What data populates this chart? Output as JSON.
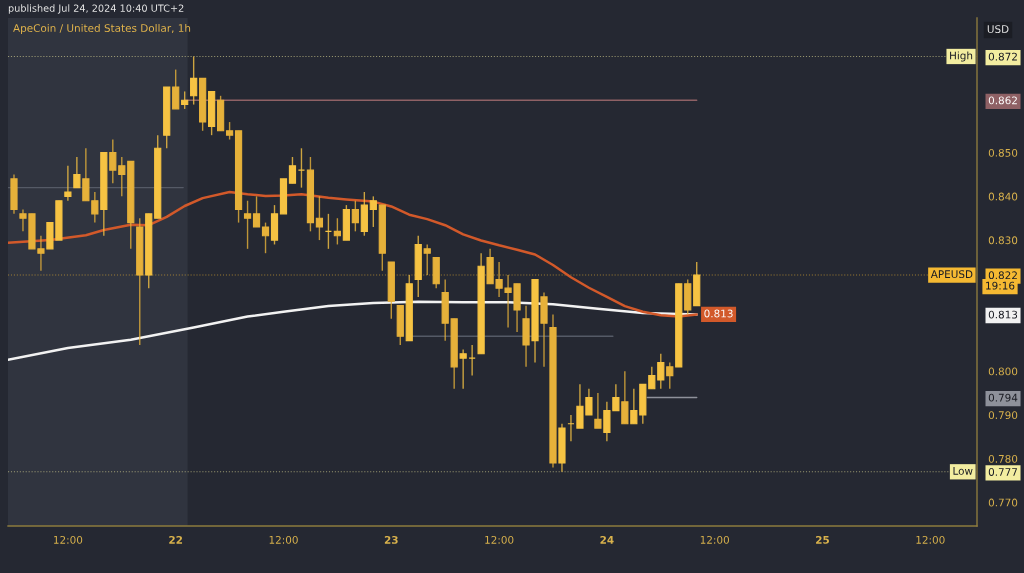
{
  "chart_data": {
    "type": "candlestick",
    "title": "ApeCoin / United States Dollar, 1h",
    "subtitle": "published Jul 24, 2024 10:40 UTC+2",
    "ylabel": "USD",
    "annotations": [
      "19:16"
    ],
    "x": [
      "2024-07-21T06:00",
      "2024-07-21T07:00",
      "2024-07-21T08:00",
      "2024-07-21T09:00",
      "2024-07-21T10:00",
      "2024-07-21T11:00",
      "2024-07-21T12:00",
      "2024-07-21T13:00",
      "2024-07-21T14:00",
      "2024-07-21T15:00",
      "2024-07-21T16:00",
      "2024-07-21T17:00",
      "2024-07-21T18:00",
      "2024-07-21T19:00",
      "2024-07-21T20:00",
      "2024-07-21T21:00",
      "2024-07-21T22:00",
      "2024-07-21T23:00",
      "2024-07-22T00:00",
      "2024-07-22T01:00",
      "2024-07-22T02:00",
      "2024-07-22T03:00",
      "2024-07-22T04:00",
      "2024-07-22T05:00",
      "2024-07-22T06:00",
      "2024-07-22T07:00",
      "2024-07-22T08:00",
      "2024-07-22T09:00",
      "2024-07-22T10:00",
      "2024-07-22T11:00",
      "2024-07-22T12:00",
      "2024-07-22T13:00",
      "2024-07-22T14:00",
      "2024-07-22T15:00",
      "2024-07-22T16:00",
      "2024-07-22T17:00",
      "2024-07-22T18:00",
      "2024-07-22T19:00",
      "2024-07-22T20:00",
      "2024-07-22T21:00",
      "2024-07-22T22:00",
      "2024-07-22T23:00",
      "2024-07-23T00:00",
      "2024-07-23T01:00",
      "2024-07-23T02:00",
      "2024-07-23T03:00",
      "2024-07-23T04:00",
      "2024-07-23T05:00",
      "2024-07-23T06:00",
      "2024-07-23T07:00",
      "2024-07-23T08:00",
      "2024-07-23T09:00",
      "2024-07-23T10:00",
      "2024-07-23T11:00",
      "2024-07-23T12:00",
      "2024-07-23T13:00",
      "2024-07-23T14:00",
      "2024-07-23T15:00",
      "2024-07-23T16:00",
      "2024-07-23T17:00",
      "2024-07-23T18:00",
      "2024-07-23T19:00",
      "2024-07-23T20:00",
      "2024-07-23T21:00",
      "2024-07-23T22:00",
      "2024-07-23T23:00",
      "2024-07-24T00:00",
      "2024-07-24T01:00",
      "2024-07-24T02:00",
      "2024-07-24T03:00",
      "2024-07-24T04:00",
      "2024-07-24T05:00",
      "2024-07-24T06:00",
      "2024-07-24T07:00",
      "2024-07-24T08:00",
      "2024-07-24T09:00",
      "2024-07-24T10:00"
    ],
    "ohlc": [
      [
        0.844,
        0.845,
        0.836,
        0.837
      ],
      [
        0.836,
        0.837,
        0.832,
        0.835
      ],
      [
        0.836,
        0.836,
        0.828,
        0.828
      ],
      [
        0.828,
        0.831,
        0.823,
        0.827
      ],
      [
        0.828,
        0.834,
        0.828,
        0.834
      ],
      [
        0.83,
        0.839,
        0.83,
        0.839
      ],
      [
        0.84,
        0.847,
        0.839,
        0.841
      ],
      [
        0.842,
        0.849,
        0.842,
        0.845
      ],
      [
        0.844,
        0.851,
        0.839,
        0.839
      ],
      [
        0.839,
        0.841,
        0.834,
        0.836
      ],
      [
        0.837,
        0.85,
        0.831,
        0.85
      ],
      [
        0.85,
        0.853,
        0.843,
        0.846
      ],
      [
        0.847,
        0.849,
        0.84,
        0.845
      ],
      [
        0.848,
        0.848,
        0.828,
        0.834
      ],
      [
        0.833,
        0.835,
        0.806,
        0.822
      ],
      [
        0.822,
        0.836,
        0.819,
        0.836
      ],
      [
        0.835,
        0.854,
        0.835,
        0.851
      ],
      [
        0.854,
        0.865,
        0.851,
        0.865
      ],
      [
        0.865,
        0.869,
        0.86,
        0.86
      ],
      [
        0.861,
        0.864,
        0.86,
        0.862
      ],
      [
        0.863,
        0.872,
        0.861,
        0.867
      ],
      [
        0.867,
        0.867,
        0.855,
        0.857
      ],
      [
        0.856,
        0.864,
        0.854,
        0.864
      ],
      [
        0.862,
        0.863,
        0.855,
        0.855
      ],
      [
        0.855,
        0.857,
        0.853,
        0.854
      ],
      [
        0.855,
        0.855,
        0.834,
        0.837
      ],
      [
        0.836,
        0.839,
        0.828,
        0.835
      ],
      [
        0.836,
        0.84,
        0.833,
        0.833
      ],
      [
        0.833,
        0.834,
        0.827,
        0.831
      ],
      [
        0.83,
        0.838,
        0.829,
        0.836
      ],
      [
        0.836,
        0.844,
        0.836,
        0.844
      ],
      [
        0.843,
        0.849,
        0.843,
        0.847
      ],
      [
        0.846,
        0.851,
        0.842,
        0.846
      ],
      [
        0.846,
        0.849,
        0.832,
        0.834
      ],
      [
        0.835,
        0.84,
        0.83,
        0.833
      ],
      [
        0.832,
        0.836,
        0.828,
        0.832
      ],
      [
        0.832,
        0.835,
        0.829,
        0.831
      ],
      [
        0.83,
        0.838,
        0.83,
        0.837
      ],
      [
        0.837,
        0.839,
        0.832,
        0.834
      ],
      [
        0.832,
        0.841,
        0.831,
        0.838
      ],
      [
        0.837,
        0.84,
        0.833,
        0.839
      ],
      [
        0.838,
        0.838,
        0.823,
        0.827
      ],
      [
        0.825,
        0.825,
        0.812,
        0.816
      ],
      [
        0.815,
        0.815,
        0.806,
        0.808
      ],
      [
        0.807,
        0.822,
        0.807,
        0.82
      ],
      [
        0.821,
        0.831,
        0.817,
        0.829
      ],
      [
        0.828,
        0.829,
        0.822,
        0.827
      ],
      [
        0.826,
        0.826,
        0.819,
        0.82
      ],
      [
        0.818,
        0.821,
        0.807,
        0.811
      ],
      [
        0.812,
        0.812,
        0.796,
        0.801
      ],
      [
        0.803,
        0.805,
        0.796,
        0.804
      ],
      [
        0.803,
        0.806,
        0.799,
        0.803
      ],
      [
        0.804,
        0.827,
        0.804,
        0.824
      ],
      [
        0.826,
        0.828,
        0.82,
        0.82
      ],
      [
        0.821,
        0.825,
        0.817,
        0.819
      ],
      [
        0.819,
        0.822,
        0.81,
        0.818
      ],
      [
        0.82,
        0.82,
        0.809,
        0.814
      ],
      [
        0.812,
        0.815,
        0.801,
        0.806
      ],
      [
        0.807,
        0.821,
        0.802,
        0.821
      ],
      [
        0.817,
        0.818,
        0.801,
        0.811
      ],
      [
        0.81,
        0.813,
        0.778,
        0.779
      ],
      [
        0.779,
        0.788,
        0.777,
        0.787
      ],
      [
        0.788,
        0.79,
        0.784,
        0.788
      ],
      [
        0.787,
        0.797,
        0.787,
        0.792
      ],
      [
        0.79,
        0.796,
        0.79,
        0.794
      ],
      [
        0.789,
        0.795,
        0.787,
        0.787
      ],
      [
        0.786,
        0.793,
        0.784,
        0.791
      ],
      [
        0.791,
        0.797,
        0.791,
        0.794
      ],
      [
        0.793,
        0.8,
        0.788,
        0.788
      ],
      [
        0.788,
        0.796,
        0.788,
        0.791
      ],
      [
        0.79,
        0.797,
        0.788,
        0.797
      ],
      [
        0.796,
        0.801,
        0.796,
        0.799
      ],
      [
        0.798,
        0.804,
        0.796,
        0.802
      ],
      [
        0.801,
        0.802,
        0.796,
        0.799
      ],
      [
        0.801,
        0.82,
        0.801,
        0.82
      ],
      [
        0.82,
        0.821,
        0.813,
        0.814
      ],
      [
        0.815,
        0.825,
        0.815,
        0.822
      ]
    ],
    "colors": [
      "#e6b13a",
      "#e6b13a",
      "#e6b13a",
      "#e6b13a",
      "#f6c343",
      "#f6c343",
      "#f6c343",
      "#f6c343",
      "#e6b13a",
      "#e6b13a",
      "#f6c343",
      "#e6b13a",
      "#e6b13a",
      "#e6b13a",
      "#e6b13a",
      "#f6c343",
      "#f6c343",
      "#f6c343",
      "#e6b13a",
      "#f6c343",
      "#f6c343",
      "#e6b13a",
      "#f6c343",
      "#e6b13a",
      "#e6b13a",
      "#e6b13a",
      "#e6b13a",
      "#e6b13a",
      "#e6b13a",
      "#f6c343",
      "#f6c343",
      "#f6c343",
      "#f6c343",
      "#e6b13a",
      "#e6b13a",
      "#f6c343",
      "#e6b13a",
      "#f6c343",
      "#e6b13a",
      "#f6c343",
      "#f6c343",
      "#e6b13a",
      "#e6b13a",
      "#e6b13a",
      "#f6c343",
      "#f6c343",
      "#e6b13a",
      "#e6b13a",
      "#e6b13a",
      "#e6b13a",
      "#f6c343",
      "#f6c343",
      "#f6c343",
      "#e6b13a",
      "#e6b13a",
      "#e6b13a",
      "#e6b13a",
      "#e6b13a",
      "#f6c343",
      "#e6b13a",
      "#e6b13a",
      "#f6c343",
      "#f6c343",
      "#f6c343",
      "#f6c343",
      "#e6b13a",
      "#f6c343",
      "#f6c343",
      "#e6b13a",
      "#f6c343",
      "#f6c343",
      "#f6c343",
      "#f6c343",
      "#e6b13a",
      "#f6c343",
      "#e6b13a",
      "#f6c343"
    ],
    "series": [
      {
        "type": "line",
        "color": "#f2f2f2",
        "x": [
          "2024-07-21T05:20",
          "2024-07-21T12:00",
          "2024-07-21T19:00",
          "2024-07-22T02:00",
          "2024-07-22T08:00",
          "2024-07-22T12:00",
          "2024-07-22T17:00",
          "2024-07-22T22:00",
          "2024-07-23T03:00",
          "2024-07-23T08:00",
          "2024-07-23T13:00",
          "2024-07-23T18:00",
          "2024-07-23T23:00",
          "2024-07-24T04:00",
          "2024-07-24T10:00"
        ],
        "values": [
          0.8026,
          0.8053,
          0.8072,
          0.81,
          0.8125,
          0.8136,
          0.8149,
          0.8156,
          0.8159,
          0.8158,
          0.8158,
          0.8153,
          0.8143,
          0.8133,
          0.813
        ]
      },
      {
        "type": "line",
        "color": "#d2592a",
        "x": [
          "2024-07-21T05:20",
          "2024-07-21T10:00",
          "2024-07-21T14:00",
          "2024-07-21T16:00",
          "2024-07-21T19:00",
          "2024-07-21T21:00",
          "2024-07-21T23:00",
          "2024-07-22T01:00",
          "2024-07-22T03:00",
          "2024-07-22T06:00",
          "2024-07-22T08:00",
          "2024-07-22T10:00",
          "2024-07-22T12:00",
          "2024-07-22T14:00",
          "2024-07-22T17:00",
          "2024-07-22T19:00",
          "2024-07-22T22:00",
          "2024-07-23T00:00",
          "2024-07-23T02:00",
          "2024-07-23T04:00",
          "2024-07-23T06:00",
          "2024-07-23T08:00",
          "2024-07-23T10:00",
          "2024-07-23T12:00",
          "2024-07-23T14:00",
          "2024-07-23T16:00",
          "2024-07-23T18:00",
          "2024-07-23T20:00",
          "2024-07-23T22:00",
          "2024-07-24T00:00",
          "2024-07-24T02:00",
          "2024-07-24T04:00",
          "2024-07-24T06:00",
          "2024-07-24T08:00",
          "2024-07-24T10:00"
        ],
        "values": [
          0.8294,
          0.83,
          0.8311,
          0.8323,
          0.8335,
          0.8334,
          0.8353,
          0.8378,
          0.8396,
          0.841,
          0.8405,
          0.8401,
          0.8402,
          0.8405,
          0.8397,
          0.8393,
          0.8388,
          0.8377,
          0.8358,
          0.8348,
          0.8334,
          0.8313,
          0.8299,
          0.8288,
          0.8278,
          0.8267,
          0.8243,
          0.8215,
          0.8191,
          0.817,
          0.8149,
          0.8136,
          0.8128,
          0.8125,
          0.813
        ],
        "value_labels": [
          null,
          null,
          null,
          null,
          null,
          null,
          null,
          null,
          null,
          null,
          null,
          null,
          null,
          null,
          null,
          null,
          null,
          null,
          null,
          null,
          null,
          null,
          null,
          null,
          null,
          null,
          null,
          null,
          null,
          null,
          null,
          null,
          null,
          null,
          "0.813"
        ]
      },
      {
        "type": "line",
        "color": "#8f6165",
        "x": [
          "2024-07-22T01:00",
          "2024-07-24T10:00"
        ],
        "values": [
          0.862,
          0.862
        ]
      },
      {
        "type": "line",
        "color": "#555a66",
        "x": [
          "2024-07-21T05:20",
          "2024-07-22T00:50"
        ],
        "values": [
          0.842,
          0.842
        ]
      },
      {
        "type": "line",
        "color": "#555a66",
        "x": [
          "2024-07-23T02:20",
          "2024-07-24T00:40"
        ],
        "values": [
          0.808,
          0.808
        ]
      },
      {
        "type": "line",
        "color": "#8e919a",
        "x": [
          "2024-07-24T04:30",
          "2024-07-24T10:00"
        ],
        "values": [
          0.794,
          0.794
        ]
      }
    ],
    "ref_lines": [
      {
        "axis": "y",
        "value": 0.872,
        "label": "High",
        "color": "#f3eda0",
        "line_style": "dotted"
      },
      {
        "axis": "y",
        "value": 0.822,
        "label": "APEUSD",
        "color": "#f5b932",
        "line_style": "dotted"
      },
      {
        "axis": "y",
        "value": 0.777,
        "label": "Low",
        "color": "#f3eda0",
        "line_style": "dotted"
      }
    ],
    "bands": [
      {
        "axis": "x",
        "from": "2024-07-21T05:20",
        "to": "2024-07-22T01:20",
        "color": "#30343f"
      }
    ],
    "xlim": [
      "2024-07-21T05:20",
      "2024-07-25T17:12"
    ],
    "xticks": [
      {
        "value": "2024-07-21T12:00",
        "label": "12:00"
      },
      {
        "value": "2024-07-22T00:00",
        "label": "22"
      },
      {
        "value": "2024-07-22T12:00",
        "label": "12:00"
      },
      {
        "value": "2024-07-23T00:00",
        "label": "23"
      },
      {
        "value": "2024-07-23T12:00",
        "label": "12:00"
      },
      {
        "value": "2024-07-24T00:00",
        "label": "24"
      },
      {
        "value": "2024-07-24T12:00",
        "label": "12:00"
      },
      {
        "value": "2024-07-25T00:00",
        "label": "25"
      },
      {
        "value": "2024-07-25T12:00",
        "label": "12:00"
      }
    ],
    "ylim": [
      0.7646,
      0.8808
    ],
    "yticks": [
      {
        "value": 0.77,
        "label": "0.770"
      },
      {
        "value": 0.777,
        "label": "0.777"
      },
      {
        "value": 0.78,
        "label": "0.780"
      },
      {
        "value": 0.79,
        "label": "0.790"
      },
      {
        "value": 0.794,
        "label": "0.794"
      },
      {
        "value": 0.8,
        "label": "0.800"
      },
      {
        "value": 0.813,
        "label": "0.813"
      },
      {
        "value": 0.822,
        "label": "0.822"
      },
      {
        "value": 0.83,
        "label": "0.830"
      },
      {
        "value": 0.84,
        "label": "0.840"
      },
      {
        "value": 0.85,
        "label": "0.850"
      },
      {
        "value": 0.862,
        "label": "0.862"
      },
      {
        "value": 0.872,
        "label": "0.872"
      }
    ],
    "grid": false
  }
}
